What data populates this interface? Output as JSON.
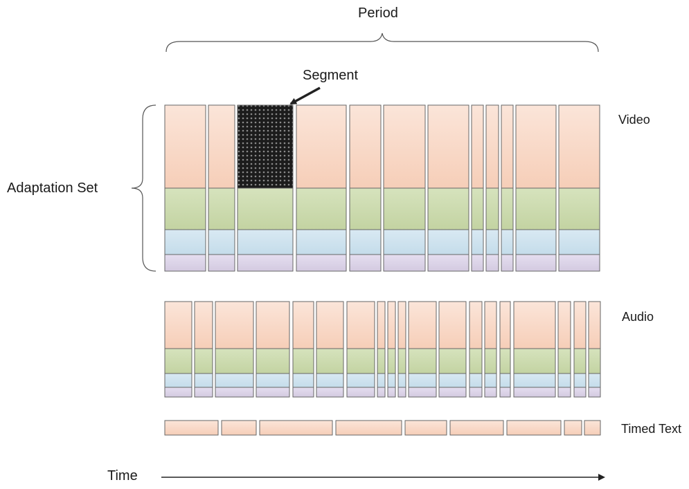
{
  "labels": {
    "period": "Period",
    "segment": "Segment",
    "adaptation_set": "Adaptation Set",
    "video": "Video",
    "audio": "Audio",
    "timed_text": "Timed Text",
    "time": "Time"
  },
  "colors": {
    "rep1": "#f8d8c8",
    "rep2": "#cddcaf",
    "rep3": "#cfe3ef",
    "rep4": "#ddd5e7",
    "stroke": "#666666",
    "segment_fill": "#1c1c1c",
    "arrow": "#222222"
  },
  "segment_highlight": {
    "track": "video",
    "segment_index": 2,
    "representation": 0
  }
}
